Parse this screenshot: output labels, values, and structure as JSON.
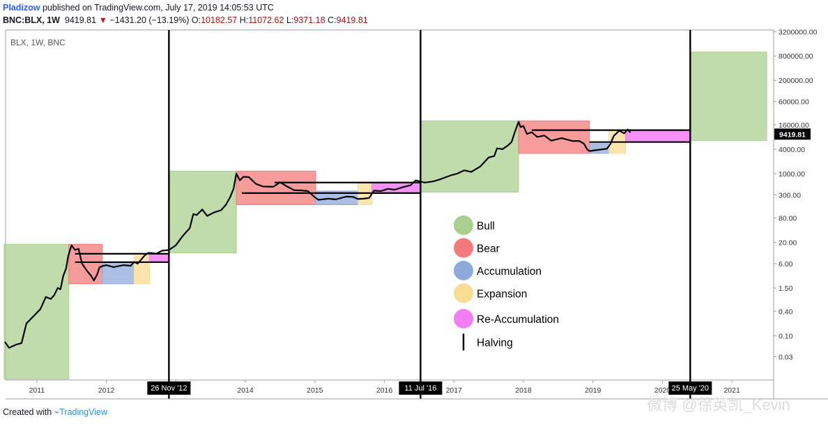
{
  "header": {
    "author": "Pladizow",
    "published_text": "published on TradingView.com, July 17, 2019 14:05:53 UTC",
    "symbol": "BNC:BLX, 1W",
    "last": "9419.81",
    "arrow": "▼",
    "change": "−1431.20 (−13.19%)",
    "o_label": "O:",
    "o_value": "10182.57",
    "h_label": "H:",
    "h_value": "11072.62",
    "l_label": "L:",
    "l_value": "9371.18",
    "c_label": "C:",
    "c_value": "9419.81"
  },
  "footer": {
    "created_with": "Created with",
    "brand": "TradingView"
  },
  "watermark": "微博 @徐英凯_Kevin",
  "colors": {
    "bull": "#a9d08e",
    "bear": "#f4797a",
    "accumulation": "#8eaadb",
    "expansion": "#f9dc92",
    "reaccumulation": "#f37ef4",
    "price_line": "#000000",
    "halving": "#000000"
  },
  "chart_data": {
    "type": "line",
    "title": "BLX, 1W, BNC",
    "yscale": "log",
    "ylabel": "",
    "xlabel": "",
    "xlim": [
      2010.55,
      2021.6
    ],
    "ylim": [
      0.008,
      3500000
    ],
    "x_ticks": [
      2011,
      2012,
      2013,
      2014,
      2015,
      2016,
      2017,
      2018,
      2019,
      2020,
      2021
    ],
    "x_tick_labels": [
      "2011",
      "2012",
      "2013",
      "2014",
      "2015",
      "2016",
      "2017",
      "2018",
      "2019",
      "2020",
      "2021"
    ],
    "y_ticks": [
      0.03,
      0.1,
      0.4,
      1.5,
      6.0,
      20.0,
      80.0,
      300.0,
      1000.0,
      4000.0,
      16000.0,
      60000.0,
      200000.0,
      800000.0,
      3200000.0
    ],
    "y_tick_labels": [
      "0.03",
      "0.10",
      "0.40",
      "1.50",
      "6.00",
      "20.00",
      "80.00",
      "300.00",
      "1000.00",
      "4000.00",
      "16000.00",
      "60000.00",
      "200000.00",
      "800000.00",
      "3200000.00"
    ],
    "last_price_label": "9419.81",
    "halvings": [
      {
        "x": 2012.9,
        "label": "26 Nov '12"
      },
      {
        "x": 2016.52,
        "label": "11 Jul '16"
      },
      {
        "x": 2020.4,
        "label": "25 May '20"
      }
    ],
    "phases": [
      {
        "phase": "bull",
        "x0": 2010.53,
        "x1": 2011.46,
        "y0": 0.0085,
        "y1": 18
      },
      {
        "phase": "bear",
        "x0": 2011.46,
        "x1": 2011.94,
        "y0": 1.9,
        "y1": 18
      },
      {
        "phase": "accumulation",
        "x0": 2011.94,
        "x1": 2012.4,
        "y0": 1.9,
        "y1": 6.5
      },
      {
        "phase": "expansion",
        "x0": 2012.4,
        "x1": 2012.62,
        "y0": 1.9,
        "y1": 9.5
      },
      {
        "phase": "reaccumulation",
        "x0": 2012.62,
        "x1": 2012.9,
        "y0": 6.5,
        "y1": 10.5
      },
      {
        "phase": "bull",
        "x0": 2012.9,
        "x1": 2013.87,
        "y0": 11,
        "y1": 1150
      },
      {
        "phase": "bear",
        "x0": 2013.87,
        "x1": 2015.01,
        "y0": 170,
        "y1": 1150
      },
      {
        "phase": "accumulation",
        "x0": 2015.01,
        "x1": 2015.62,
        "y0": 170,
        "y1": 370
      },
      {
        "phase": "expansion",
        "x0": 2015.62,
        "x1": 2015.82,
        "y0": 170,
        "y1": 580
      },
      {
        "phase": "reaccumulation",
        "x0": 2015.82,
        "x1": 2016.52,
        "y0": 330,
        "y1": 600
      },
      {
        "phase": "bull",
        "x0": 2016.52,
        "x1": 2017.93,
        "y0": 350,
        "y1": 20000
      },
      {
        "phase": "bear",
        "x0": 2017.93,
        "x1": 2018.95,
        "y0": 3150,
        "y1": 20000
      },
      {
        "phase": "accumulation",
        "x0": 2018.95,
        "x1": 2019.23,
        "y0": 3150,
        "y1": 5500
      },
      {
        "phase": "expansion",
        "x0": 2019.23,
        "x1": 2019.47,
        "y0": 3150,
        "y1": 11800
      },
      {
        "phase": "reaccumulation",
        "x0": 2019.47,
        "x1": 2020.4,
        "y0": 6000,
        "y1": 12000
      },
      {
        "phase": "bull",
        "x0": 2020.4,
        "x1": 2021.5,
        "y0": 6500,
        "y1": 1000000
      }
    ],
    "range_lines": [
      {
        "x0": 2011.55,
        "x1": 2012.9,
        "y": 10.5
      },
      {
        "x0": 2011.55,
        "x1": 2012.9,
        "y": 6.5
      },
      {
        "x0": 2014.42,
        "x1": 2016.52,
        "y": 600
      },
      {
        "x0": 2013.95,
        "x1": 2016.52,
        "y": 330
      },
      {
        "x0": 2018.12,
        "x1": 2020.4,
        "y": 11800
      },
      {
        "x0": 2018.95,
        "x1": 2020.4,
        "y": 6000
      }
    ],
    "series": [
      {
        "name": "BLX",
        "x": [
          2010.54,
          2010.6,
          2010.7,
          2010.78,
          2010.85,
          2010.95,
          2011.05,
          2011.13,
          2011.2,
          2011.25,
          2011.3,
          2011.34,
          2011.38,
          2011.42,
          2011.45,
          2011.47,
          2011.5,
          2011.55,
          2011.6,
          2011.65,
          2011.72,
          2011.78,
          2011.82,
          2011.87,
          2011.9,
          2011.94,
          2012.0,
          2012.05,
          2012.1,
          2012.15,
          2012.25,
          2012.35,
          2012.4,
          2012.45,
          2012.5,
          2012.55,
          2012.6,
          2012.65,
          2012.72,
          2012.8,
          2012.9,
          2013.0,
          2013.1,
          2013.2,
          2013.25,
          2013.3,
          2013.38,
          2013.45,
          2013.55,
          2013.65,
          2013.72,
          2013.78,
          2013.83,
          2013.87,
          2013.92,
          2013.97,
          2014.05,
          2014.15,
          2014.25,
          2014.4,
          2014.5,
          2014.6,
          2014.7,
          2014.8,
          2014.9,
          2015.0,
          2015.05,
          2015.2,
          2015.3,
          2015.45,
          2015.55,
          2015.62,
          2015.7,
          2015.78,
          2015.85,
          2015.95,
          2016.05,
          2016.15,
          2016.25,
          2016.38,
          2016.45,
          2016.5,
          2016.58,
          2016.7,
          2016.8,
          2016.95,
          2017.05,
          2017.15,
          2017.25,
          2017.38,
          2017.5,
          2017.58,
          2017.62,
          2017.7,
          2017.78,
          2017.83,
          2017.88,
          2017.93,
          2017.96,
          2018.0,
          2018.05,
          2018.12,
          2018.2,
          2018.3,
          2018.4,
          2018.55,
          2018.7,
          2018.8,
          2018.87,
          2018.92,
          2018.95,
          2019.0,
          2019.1,
          2019.2,
          2019.25,
          2019.3,
          2019.38,
          2019.45,
          2019.5,
          2019.54
        ],
        "y": [
          0.07,
          0.05,
          0.06,
          0.065,
          0.2,
          0.3,
          0.45,
          0.9,
          0.8,
          1.0,
          1.5,
          1.4,
          3.0,
          4.5,
          9,
          12,
          17,
          13,
          14,
          6,
          4,
          3.0,
          2.3,
          3.3,
          4.8,
          5.2,
          5.5,
          5.2,
          4.9,
          5.1,
          5.5,
          5.3,
          6.6,
          6.0,
          7.5,
          9.5,
          11,
          11,
          10.5,
          12.5,
          13,
          17,
          29,
          45,
          100,
          95,
          130,
          90,
          110,
          125,
          170,
          260,
          420,
          1000,
          680,
          830,
          820,
          560,
          480,
          470,
          610,
          480,
          390,
          385,
          370,
          260,
          225,
          240,
          230,
          270,
          265,
          235,
          240,
          250,
          380,
          370,
          420,
          400,
          455,
          520,
          680,
          650,
          600,
          640,
          720,
          900,
          1000,
          1200,
          1100,
          1500,
          2500,
          2700,
          4200,
          4000,
          5000,
          6000,
          11000,
          19000,
          14000,
          15000,
          9500,
          10500,
          8000,
          8700,
          6500,
          7500,
          6400,
          6400,
          5500,
          3900,
          3600,
          3700,
          3900,
          4100,
          5300,
          8500,
          11500,
          9800,
          12300,
          10300
        ]
      }
    ]
  },
  "legend": [
    {
      "key": "bull",
      "label": "Bull"
    },
    {
      "key": "bear",
      "label": "Bear"
    },
    {
      "key": "accumulation",
      "label": "Accumulation"
    },
    {
      "key": "expansion",
      "label": "Expansion"
    },
    {
      "key": "reaccumulation",
      "label": "Re-Accumulation"
    },
    {
      "key": "halving",
      "label": "Halving"
    }
  ]
}
